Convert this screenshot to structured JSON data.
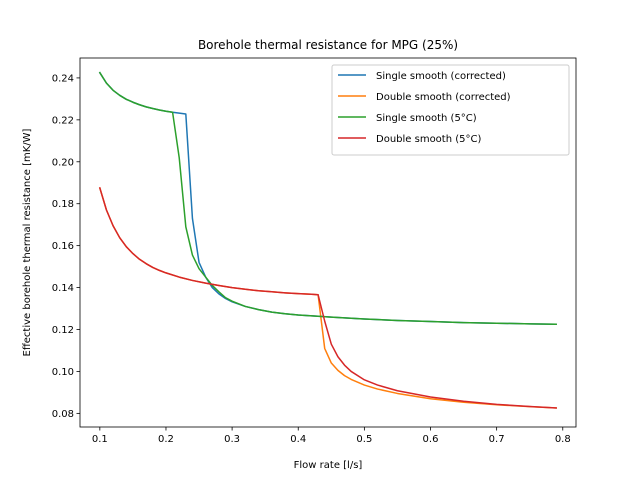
{
  "chart_data": {
    "type": "line",
    "title": "Borehole thermal resistance for MPG (25%)",
    "xlabel": "Flow rate [l/s]",
    "ylabel": "Effective borehole thermal resistance [mK/W]",
    "xlim": [
      0.07,
      0.82
    ],
    "ylim": [
      0.0735,
      0.2495
    ],
    "xticks": [
      0.1,
      0.2,
      0.3,
      0.4,
      0.5,
      0.6,
      0.7,
      0.8
    ],
    "xtick_labels": [
      "0.1",
      "0.2",
      "0.3",
      "0.4",
      "0.5",
      "0.6",
      "0.7",
      "0.8"
    ],
    "yticks": [
      0.08,
      0.1,
      0.12,
      0.14,
      0.16,
      0.18,
      0.2,
      0.22,
      0.24
    ],
    "ytick_labels": [
      "0.08",
      "0.10",
      "0.12",
      "0.14",
      "0.16",
      "0.18",
      "0.20",
      "0.22",
      "0.24"
    ],
    "grid": false,
    "legend_position": "top-right",
    "series": [
      {
        "name": "Single smooth (corrected)",
        "color": "#1f77b4",
        "x": [
          0.1,
          0.11,
          0.12,
          0.13,
          0.14,
          0.15,
          0.16,
          0.17,
          0.18,
          0.19,
          0.2,
          0.21,
          0.22,
          0.23,
          0.24,
          0.25,
          0.26,
          0.27,
          0.28,
          0.29,
          0.3,
          0.32,
          0.34,
          0.36,
          0.38,
          0.4,
          0.43,
          0.45,
          0.5,
          0.55,
          0.6,
          0.65,
          0.7,
          0.75,
          0.79
        ],
        "y": [
          0.2425,
          0.2375,
          0.2341,
          0.2317,
          0.2298,
          0.2284,
          0.2272,
          0.2262,
          0.2254,
          0.2247,
          0.2241,
          0.2236,
          0.2232,
          0.2228,
          0.173,
          0.152,
          0.145,
          0.14,
          0.137,
          0.1348,
          0.1332,
          0.131,
          0.1295,
          0.1283,
          0.1275,
          0.1269,
          0.1263,
          0.1259,
          0.125,
          0.1243,
          0.1238,
          0.1233,
          0.123,
          0.1227,
          0.1225
        ]
      },
      {
        "name": "Double smooth (corrected)",
        "color": "#ff7f0e",
        "x": [
          0.1,
          0.11,
          0.12,
          0.13,
          0.14,
          0.15,
          0.16,
          0.17,
          0.18,
          0.19,
          0.2,
          0.22,
          0.24,
          0.26,
          0.28,
          0.3,
          0.32,
          0.34,
          0.36,
          0.38,
          0.4,
          0.42,
          0.43,
          0.44,
          0.45,
          0.46,
          0.47,
          0.48,
          0.5,
          0.52,
          0.55,
          0.6,
          0.65,
          0.7,
          0.75,
          0.79
        ],
        "y": [
          0.1875,
          0.177,
          0.1695,
          0.1638,
          0.1595,
          0.1562,
          0.1535,
          0.1514,
          0.1496,
          0.1482,
          0.147,
          0.145,
          0.1434,
          0.1421,
          0.141,
          0.14,
          0.1392,
          0.1385,
          0.138,
          0.1375,
          0.1371,
          0.1368,
          0.1366,
          0.111,
          0.104,
          0.1005,
          0.098,
          0.0962,
          0.0935,
          0.0916,
          0.0895,
          0.087,
          0.0853,
          0.0841,
          0.0832,
          0.0826
        ]
      },
      {
        "name": "Single smooth (5°C)",
        "color": "#2ca02c",
        "x": [
          0.1,
          0.11,
          0.12,
          0.13,
          0.14,
          0.15,
          0.16,
          0.17,
          0.18,
          0.19,
          0.2,
          0.21,
          0.22,
          0.23,
          0.24,
          0.25,
          0.26,
          0.27,
          0.28,
          0.29,
          0.3,
          0.32,
          0.34,
          0.36,
          0.38,
          0.4,
          0.43,
          0.45,
          0.5,
          0.55,
          0.6,
          0.65,
          0.7,
          0.75,
          0.79
        ],
        "y": [
          0.2425,
          0.2375,
          0.2341,
          0.2317,
          0.2298,
          0.2284,
          0.2272,
          0.2262,
          0.2254,
          0.2247,
          0.2241,
          0.2236,
          0.202,
          0.169,
          0.1555,
          0.149,
          0.145,
          0.141,
          0.138,
          0.1352,
          0.1335,
          0.131,
          0.1295,
          0.1283,
          0.1275,
          0.1269,
          0.1263,
          0.1259,
          0.125,
          0.1243,
          0.1238,
          0.1233,
          0.123,
          0.1227,
          0.1225
        ]
      },
      {
        "name": "Double smooth (5°C)",
        "color": "#d62728",
        "x": [
          0.1,
          0.11,
          0.12,
          0.13,
          0.14,
          0.15,
          0.16,
          0.17,
          0.18,
          0.19,
          0.2,
          0.22,
          0.24,
          0.26,
          0.28,
          0.3,
          0.32,
          0.34,
          0.36,
          0.38,
          0.4,
          0.42,
          0.43,
          0.44,
          0.45,
          0.46,
          0.47,
          0.48,
          0.5,
          0.52,
          0.55,
          0.6,
          0.65,
          0.7,
          0.75,
          0.79
        ],
        "y": [
          0.1875,
          0.177,
          0.1695,
          0.1638,
          0.1595,
          0.1562,
          0.1535,
          0.1514,
          0.1496,
          0.1482,
          0.147,
          0.145,
          0.1434,
          0.1421,
          0.141,
          0.14,
          0.1392,
          0.1385,
          0.138,
          0.1375,
          0.1371,
          0.1368,
          0.1366,
          0.124,
          0.113,
          0.107,
          0.103,
          0.1,
          0.096,
          0.0935,
          0.0908,
          0.0878,
          0.0858,
          0.0843,
          0.0833,
          0.0826
        ]
      }
    ]
  }
}
